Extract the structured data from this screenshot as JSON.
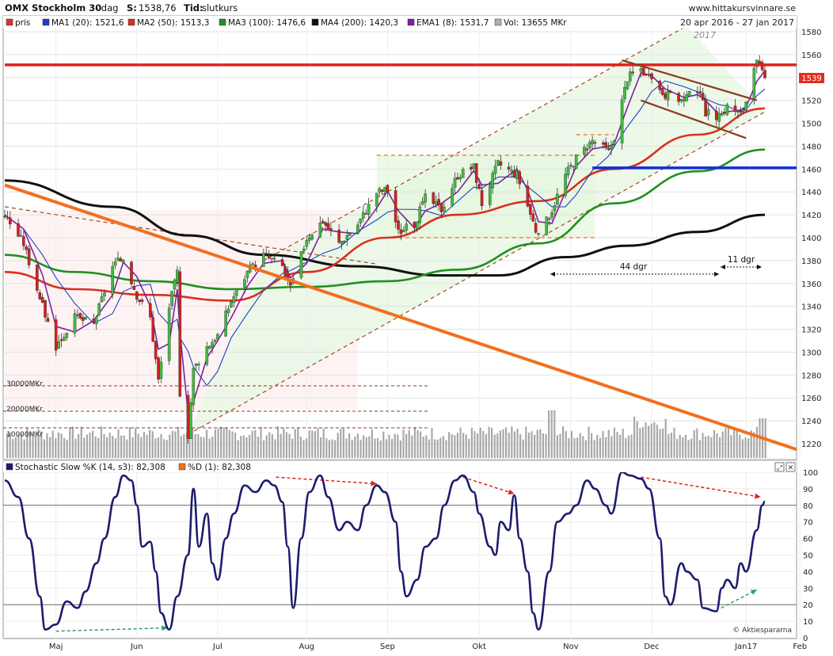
{
  "header": {
    "symbol": "OMX Stockholm 30",
    "interval": "- dag",
    "close_label": "S:",
    "close_value": "1538,76",
    "time_label": "Tid:",
    "time_value": "slutkurs",
    "site": "www.hittakursvinnare.se",
    "date_range": "20 apr 2016 - 27 jan 2017"
  },
  "legend_main": [
    {
      "label": "pris",
      "color": "#e03030"
    },
    {
      "label": "MA1 (20): 1521,6",
      "color": "#2040c0"
    },
    {
      "label": "MA2 (50): 1513,3",
      "color": "#d83020"
    },
    {
      "label": "MA3 (100): 1476,6",
      "color": "#209020"
    },
    {
      "label": "MA4 (200): 1420,3",
      "color": "#101010"
    },
    {
      "label": "EMA1 (8): 1531,7",
      "color": "#8020a0"
    },
    {
      "label": "Vol: 13655 MKr",
      "color": "#b0b0b0"
    }
  ],
  "legend_osc": [
    {
      "label": "Stochastic Slow %K (14, s3): 82,308",
      "color": "#1c1c6e"
    },
    {
      "label": "%D (1): 82,308",
      "color": "#f07020"
    }
  ],
  "annotations": {
    "year_label": "2017",
    "price_tag": "1539",
    "span1": "44 dgr",
    "span2": "11 dgr",
    "vol_labels": [
      "30000MKr",
      "20000MKr",
      "10000MKr"
    ],
    "watermark": "© Aktiespararna"
  },
  "chart_data": [
    {
      "type": "candlestick",
      "title": "OMX Stockholm 30",
      "x_tick_labels": [
        "Maj",
        "Jun",
        "Jul",
        "Aug",
        "Sep",
        "Okt",
        "Nov",
        "Dec",
        "Jan17",
        "Feb"
      ],
      "y_ticks": [
        1220,
        1240,
        1260,
        1280,
        1300,
        1320,
        1340,
        1360,
        1380,
        1400,
        1420,
        1440,
        1460,
        1480,
        1500,
        1520,
        1540,
        1560,
        1580
      ],
      "ylim": [
        1212,
        1585
      ],
      "last_close": 1538.76,
      "grid": true,
      "price_path": [
        {
          "date": "2016-04-20",
          "close": 1420
        },
        {
          "date": "2016-04-27",
          "close": 1395
        },
        {
          "date": "2016-05-04",
          "close": 1340
        },
        {
          "date": "2016-05-09",
          "close": 1305
        },
        {
          "date": "2016-05-16",
          "close": 1330
        },
        {
          "date": "2016-05-23",
          "close": 1325
        },
        {
          "date": "2016-05-30",
          "close": 1375
        },
        {
          "date": "2016-06-03",
          "close": 1382
        },
        {
          "date": "2016-06-08",
          "close": 1350
        },
        {
          "date": "2016-06-13",
          "close": 1330
        },
        {
          "date": "2016-06-16",
          "close": 1275
        },
        {
          "date": "2016-06-20",
          "close": 1340
        },
        {
          "date": "2016-06-23",
          "close": 1370
        },
        {
          "date": "2016-06-24",
          "close": 1265
        },
        {
          "date": "2016-06-27",
          "close": 1228
        },
        {
          "date": "2016-06-29",
          "close": 1285
        },
        {
          "date": "2016-07-04",
          "close": 1305
        },
        {
          "date": "2016-07-08",
          "close": 1315
        },
        {
          "date": "2016-07-13",
          "close": 1345
        },
        {
          "date": "2016-07-19",
          "close": 1370
        },
        {
          "date": "2016-07-25",
          "close": 1385
        },
        {
          "date": "2016-08-01",
          "close": 1375
        },
        {
          "date": "2016-08-04",
          "close": 1355
        },
        {
          "date": "2016-08-10",
          "close": 1400
        },
        {
          "date": "2016-08-16",
          "close": 1415
        },
        {
          "date": "2016-08-22",
          "close": 1395
        },
        {
          "date": "2016-08-29",
          "close": 1412
        },
        {
          "date": "2016-09-05",
          "close": 1440
        },
        {
          "date": "2016-09-09",
          "close": 1442
        },
        {
          "date": "2016-09-13",
          "close": 1405
        },
        {
          "date": "2016-09-19",
          "close": 1412
        },
        {
          "date": "2016-09-23",
          "close": 1435
        },
        {
          "date": "2016-09-29",
          "close": 1425
        },
        {
          "date": "2016-10-05",
          "close": 1455
        },
        {
          "date": "2016-10-11",
          "close": 1462
        },
        {
          "date": "2016-10-14",
          "close": 1430
        },
        {
          "date": "2016-10-20",
          "close": 1465
        },
        {
          "date": "2016-10-27",
          "close": 1455
        },
        {
          "date": "2016-10-31",
          "close": 1428
        },
        {
          "date": "2016-11-04",
          "close": 1400
        },
        {
          "date": "2016-11-09",
          "close": 1425
        },
        {
          "date": "2016-11-14",
          "close": 1455
        },
        {
          "date": "2016-11-18",
          "close": 1470
        },
        {
          "date": "2016-11-24",
          "close": 1485
        },
        {
          "date": "2016-11-30",
          "close": 1475
        },
        {
          "date": "2016-12-02",
          "close": 1488
        },
        {
          "date": "2016-12-07",
          "close": 1540
        },
        {
          "date": "2016-12-12",
          "close": 1548
        },
        {
          "date": "2016-12-16",
          "close": 1535
        },
        {
          "date": "2016-12-21",
          "close": 1525
        },
        {
          "date": "2016-12-28",
          "close": 1520
        },
        {
          "date": "2017-01-02",
          "close": 1530
        },
        {
          "date": "2017-01-05",
          "close": 1510
        },
        {
          "date": "2017-01-10",
          "close": 1505
        },
        {
          "date": "2017-01-13",
          "close": 1515
        },
        {
          "date": "2017-01-18",
          "close": 1508
        },
        {
          "date": "2017-01-20",
          "close": 1520
        },
        {
          "date": "2017-01-24",
          "close": 1553
        },
        {
          "date": "2017-01-27",
          "close": 1539
        }
      ],
      "moving_averages": [
        {
          "name": "MA4 (200)",
          "color": "#101010",
          "points": [
            [
              "2016-04-20",
              1450
            ],
            [
              "2016-05-30",
              1427
            ],
            [
              "2016-06-27",
              1402
            ],
            [
              "2016-07-25",
              1385
            ],
            [
              "2016-08-29",
              1375
            ],
            [
              "2016-09-29",
              1367
            ],
            [
              "2016-10-20",
              1367
            ],
            [
              "2016-11-14",
              1383
            ],
            [
              "2016-12-07",
              1393
            ],
            [
              "2017-01-02",
              1405
            ],
            [
              "2017-01-27",
              1420
            ]
          ]
        },
        {
          "name": "MA3 (100)",
          "color": "#209020",
          "points": [
            [
              "2016-04-20",
              1385
            ],
            [
              "2016-05-16",
              1370
            ],
            [
              "2016-06-13",
              1362
            ],
            [
              "2016-07-13",
              1355
            ],
            [
              "2016-08-10",
              1357
            ],
            [
              "2016-09-09",
              1362
            ],
            [
              "2016-10-05",
              1372
            ],
            [
              "2016-11-04",
              1395
            ],
            [
              "2016-12-02",
              1430
            ],
            [
              "2017-01-02",
              1458
            ],
            [
              "2017-01-27",
              1477
            ]
          ]
        },
        {
          "name": "MA2 (50)",
          "color": "#d83020",
          "points": [
            [
              "2016-04-20",
              1370
            ],
            [
              "2016-05-16",
              1355
            ],
            [
              "2016-06-13",
              1350
            ],
            [
              "2016-07-13",
              1345
            ],
            [
              "2016-08-10",
              1370
            ],
            [
              "2016-09-09",
              1400
            ],
            [
              "2016-10-05",
              1420
            ],
            [
              "2016-11-04",
              1432
            ],
            [
              "2016-12-02",
              1460
            ],
            [
              "2017-01-02",
              1490
            ],
            [
              "2017-01-27",
              1513
            ]
          ]
        }
      ],
      "trendlines": [
        {
          "name": "red horizontal resistance",
          "color": "#e02020",
          "from": [
            "2016-04-20",
            1551
          ],
          "to": [
            "2017-01-27",
            1551
          ]
        },
        {
          "name": "blue horizontal support",
          "color": "#1030d0",
          "from": [
            "2016-11-24",
            1461
          ],
          "to": [
            "2017-01-27",
            1461
          ]
        },
        {
          "name": "orange falling trendline",
          "color": "#f07020",
          "from": [
            "2016-04-20",
            1446
          ],
          "to": [
            "2017-01-27",
            1225
          ]
        }
      ],
      "volume_scale_labels": [
        "30000MKr",
        "20000MKr",
        "10000MKr"
      ]
    },
    {
      "type": "line",
      "title": "Stochastic Slow %K (14, s3)",
      "y_ticks": [
        0,
        10,
        20,
        30,
        40,
        50,
        60,
        70,
        80,
        90,
        100
      ],
      "ylim": [
        0,
        100
      ],
      "reference_levels": [
        20,
        80
      ],
      "last_value": 82.308,
      "series": [
        {
          "name": "Stochastic Slow %K (14, s3)",
          "color": "#1c1c6e",
          "points": [
            [
              "2016-04-20",
              95
            ],
            [
              "2016-04-25",
              85
            ],
            [
              "2016-04-29",
              60
            ],
            [
              "2016-05-03",
              25
            ],
            [
              "2016-05-05",
              5
            ],
            [
              "2016-05-09",
              8
            ],
            [
              "2016-05-13",
              22
            ],
            [
              "2016-05-17",
              18
            ],
            [
              "2016-05-20",
              28
            ],
            [
              "2016-05-24",
              45
            ],
            [
              "2016-05-27",
              60
            ],
            [
              "2016-05-31",
              85
            ],
            [
              "2016-06-03",
              98
            ],
            [
              "2016-06-06",
              95
            ],
            [
              "2016-06-08",
              80
            ],
            [
              "2016-06-10",
              55
            ],
            [
              "2016-06-13",
              58
            ],
            [
              "2016-06-15",
              40
            ],
            [
              "2016-06-17",
              15
            ],
            [
              "2016-06-20",
              5
            ],
            [
              "2016-06-23",
              25
            ],
            [
              "2016-06-27",
              50
            ],
            [
              "2016-06-29",
              90
            ],
            [
              "2016-07-01",
              55
            ],
            [
              "2016-07-04",
              75
            ],
            [
              "2016-07-06",
              45
            ],
            [
              "2016-07-08",
              35
            ],
            [
              "2016-07-11",
              60
            ],
            [
              "2016-07-14",
              75
            ],
            [
              "2016-07-18",
              92
            ],
            [
              "2016-07-22",
              88
            ],
            [
              "2016-07-26",
              95
            ],
            [
              "2016-07-29",
              92
            ],
            [
              "2016-08-01",
              82
            ],
            [
              "2016-08-03",
              55
            ],
            [
              "2016-08-05",
              18
            ],
            [
              "2016-08-08",
              60
            ],
            [
              "2016-08-11",
              88
            ],
            [
              "2016-08-15",
              98
            ],
            [
              "2016-08-18",
              85
            ],
            [
              "2016-08-22",
              65
            ],
            [
              "2016-08-25",
              70
            ],
            [
              "2016-08-29",
              65
            ],
            [
              "2016-09-01",
              80
            ],
            [
              "2016-09-05",
              92
            ],
            [
              "2016-09-08",
              88
            ],
            [
              "2016-09-12",
              70
            ],
            [
              "2016-09-14",
              40
            ],
            [
              "2016-09-16",
              25
            ],
            [
              "2016-09-20",
              35
            ],
            [
              "2016-09-23",
              55
            ],
            [
              "2016-09-27",
              60
            ],
            [
              "2016-09-30",
              80
            ],
            [
              "2016-10-04",
              95
            ],
            [
              "2016-10-07",
              98
            ],
            [
              "2016-10-11",
              88
            ],
            [
              "2016-10-13",
              75
            ],
            [
              "2016-10-17",
              55
            ],
            [
              "2016-10-19",
              50
            ],
            [
              "2016-10-21",
              70
            ],
            [
              "2016-10-24",
              65
            ],
            [
              "2016-10-26",
              86
            ],
            [
              "2016-10-28",
              60
            ],
            [
              "2016-10-31",
              40
            ],
            [
              "2016-11-02",
              15
            ],
            [
              "2016-11-04",
              5
            ],
            [
              "2016-11-08",
              40
            ],
            [
              "2016-11-11",
              70
            ],
            [
              "2016-11-15",
              75
            ],
            [
              "2016-11-18",
              80
            ],
            [
              "2016-11-22",
              95
            ],
            [
              "2016-11-25",
              90
            ],
            [
              "2016-11-29",
              80
            ],
            [
              "2016-12-01",
              75
            ],
            [
              "2016-12-05",
              100
            ],
            [
              "2016-12-08",
              98
            ],
            [
              "2016-12-12",
              96
            ],
            [
              "2016-12-15",
              90
            ],
            [
              "2016-12-19",
              60
            ],
            [
              "2016-12-21",
              25
            ],
            [
              "2016-12-23",
              20
            ],
            [
              "2016-12-27",
              45
            ],
            [
              "2016-12-29",
              40
            ],
            [
              "2017-01-02",
              35
            ],
            [
              "2017-01-04",
              18
            ],
            [
              "2017-01-09",
              16
            ],
            [
              "2017-01-11",
              30
            ],
            [
              "2017-01-13",
              35
            ],
            [
              "2017-01-16",
              30
            ],
            [
              "2017-01-18",
              45
            ],
            [
              "2017-01-20",
              40
            ],
            [
              "2017-01-24",
              65
            ],
            [
              "2017-01-26",
              80
            ],
            [
              "2017-01-27",
              82.3
            ]
          ]
        },
        {
          "name": "%D (1)",
          "color": "#f07020",
          "last_value": 82.308
        }
      ]
    }
  ]
}
